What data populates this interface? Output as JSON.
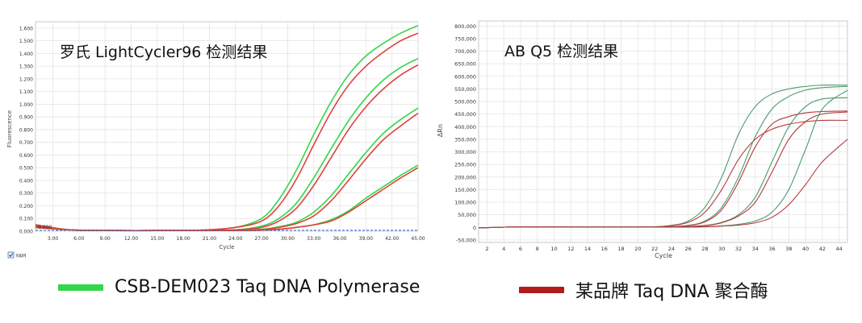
{
  "colors": {
    "green": "#33d64a",
    "red": "#e0413e",
    "green_dark": "#4b9a6d",
    "red_dark": "#b33a3a"
  },
  "legend": {
    "green_label": "CSB-DEM023 Taq DNA Polymerase",
    "red_label": "某品牌 Taq DNA 聚合酶"
  },
  "chart_data": [
    {
      "type": "line",
      "title": "罗氏 LightCycler96 检测结果",
      "xlabel": "Cycle",
      "ylabel": "Fluorescence",
      "xlim": [
        1,
        45
      ],
      "ylim": [
        0,
        1.65
      ],
      "x_ticks": [
        "3.00",
        "6.00",
        "9.00",
        "12.00",
        "15.00",
        "18.00",
        "21.00",
        "24.00",
        "27.00",
        "30.00",
        "33.00",
        "36.00",
        "39.00",
        "42.00",
        "45.00"
      ],
      "y_ticks": [
        "0.000",
        "0.100",
        "0.200",
        "0.300",
        "0.400",
        "0.500",
        "0.600",
        "0.700",
        "0.800",
        "0.900",
        "1.000",
        "1.100",
        "1.200",
        "1.300",
        "1.400",
        "1.500",
        "1.600"
      ],
      "y_ticks_values": [
        0,
        0.1,
        0.2,
        0.3,
        0.4,
        0.5,
        0.6,
        0.7,
        0.8,
        0.9,
        1.0,
        1.1,
        1.2,
        1.3,
        1.4,
        1.5,
        1.6
      ],
      "x_ticks_values": [
        3,
        6,
        9,
        12,
        15,
        18,
        21,
        24,
        27,
        30,
        33,
        36,
        39,
        42,
        45
      ],
      "baseline_label": "0.000",
      "channel_label": "FAM",
      "grid": true,
      "series": [
        {
          "group": "green",
          "x": [
            1,
            5,
            10,
            15,
            20,
            24,
            27,
            29,
            31,
            33,
            35,
            37,
            39,
            41,
            43,
            45
          ],
          "y": [
            0.05,
            0.01,
            0.005,
            0.005,
            0.008,
            0.03,
            0.1,
            0.25,
            0.48,
            0.76,
            1.02,
            1.23,
            1.38,
            1.48,
            1.56,
            1.62
          ]
        },
        {
          "group": "red",
          "x": [
            1,
            5,
            10,
            15,
            20,
            24,
            27,
            29,
            31,
            33,
            35,
            37,
            39,
            41,
            43,
            45
          ],
          "y": [
            0.05,
            0.01,
            0.005,
            0.005,
            0.008,
            0.03,
            0.08,
            0.2,
            0.41,
            0.68,
            0.94,
            1.15,
            1.3,
            1.41,
            1.5,
            1.56
          ]
        },
        {
          "group": "green",
          "x": [
            1,
            5,
            10,
            15,
            20,
            24,
            27,
            29,
            31,
            33,
            35,
            37,
            39,
            41,
            43,
            45
          ],
          "y": [
            0.04,
            0.01,
            0.005,
            0.005,
            0.005,
            0.01,
            0.04,
            0.1,
            0.22,
            0.42,
            0.65,
            0.87,
            1.05,
            1.19,
            1.29,
            1.36
          ]
        },
        {
          "group": "red",
          "x": [
            1,
            5,
            10,
            15,
            20,
            24,
            27,
            29,
            31,
            33,
            35,
            37,
            39,
            41,
            43,
            45
          ],
          "y": [
            0.04,
            0.01,
            0.005,
            0.005,
            0.005,
            0.01,
            0.03,
            0.08,
            0.18,
            0.36,
            0.58,
            0.8,
            0.98,
            1.12,
            1.23,
            1.31
          ]
        },
        {
          "group": "green",
          "x": [
            1,
            5,
            10,
            15,
            20,
            24,
            27,
            29,
            31,
            33,
            35,
            37,
            39,
            41,
            43,
            45
          ],
          "y": [
            0.03,
            0.01,
            0.005,
            0.005,
            0.005,
            0.008,
            0.015,
            0.035,
            0.07,
            0.15,
            0.28,
            0.45,
            0.62,
            0.77,
            0.88,
            0.97
          ]
        },
        {
          "group": "red",
          "x": [
            1,
            5,
            10,
            15,
            20,
            24,
            27,
            29,
            31,
            33,
            35,
            37,
            39,
            41,
            43,
            45
          ],
          "y": [
            0.03,
            0.01,
            0.005,
            0.005,
            0.005,
            0.008,
            0.012,
            0.03,
            0.06,
            0.12,
            0.24,
            0.4,
            0.57,
            0.72,
            0.83,
            0.93
          ]
        },
        {
          "group": "green",
          "x": [
            1,
            5,
            10,
            15,
            20,
            24,
            27,
            29,
            31,
            33,
            35,
            37,
            39,
            41,
            43,
            45
          ],
          "y": [
            0.03,
            0.01,
            0.005,
            0.005,
            0.005,
            0.005,
            0.008,
            0.015,
            0.03,
            0.05,
            0.09,
            0.16,
            0.26,
            0.35,
            0.44,
            0.52
          ]
        },
        {
          "group": "red",
          "x": [
            1,
            5,
            10,
            15,
            20,
            24,
            27,
            29,
            31,
            33,
            35,
            37,
            39,
            41,
            43,
            45
          ],
          "y": [
            0.03,
            0.01,
            0.005,
            0.005,
            0.005,
            0.005,
            0.008,
            0.015,
            0.03,
            0.05,
            0.08,
            0.15,
            0.24,
            0.33,
            0.42,
            0.5
          ]
        }
      ]
    },
    {
      "type": "line",
      "title": "AB Q5 检测结果",
      "xlabel": "Cycle",
      "ylabel": "ΔRn",
      "xlim": [
        1,
        45
      ],
      "ylim": [
        -60000,
        820000
      ],
      "x_ticks": [
        "2",
        "4",
        "6",
        "8",
        "10",
        "12",
        "14",
        "16",
        "18",
        "20",
        "22",
        "24",
        "26",
        "28",
        "30",
        "32",
        "34",
        "36",
        "38",
        "40",
        "42",
        "44"
      ],
      "x_ticks_values": [
        2,
        4,
        6,
        8,
        10,
        12,
        14,
        16,
        18,
        20,
        22,
        24,
        26,
        28,
        30,
        32,
        34,
        36,
        38,
        40,
        42,
        44
      ],
      "y_ticks": [
        "-50,000",
        "0",
        "50,000",
        "100,000",
        "150,000",
        "200,000",
        "250,000",
        "300,000",
        "350,000",
        "400,000",
        "450,000",
        "500,000",
        "550,000",
        "600,000",
        "650,000",
        "700,000",
        "750,000",
        "800,000"
      ],
      "y_ticks_values": [
        -50000,
        0,
        50000,
        100000,
        150000,
        200000,
        250000,
        300000,
        350000,
        400000,
        450000,
        500000,
        550000,
        600000,
        650000,
        700000,
        750000,
        800000
      ],
      "grid": true,
      "series": [
        {
          "group": "green",
          "x": [
            1,
            6,
            12,
            18,
            22,
            24,
            26,
            28,
            30,
            32,
            34,
            36,
            38,
            40,
            42,
            45
          ],
          "y": [
            -2000,
            2000,
            1000,
            1000,
            2000,
            8000,
            25000,
            80000,
            200000,
            370000,
            480000,
            530000,
            550000,
            560000,
            565000,
            565000
          ]
        },
        {
          "group": "red",
          "x": [
            1,
            6,
            12,
            18,
            22,
            24,
            26,
            28,
            30,
            32,
            34,
            36,
            38,
            40,
            42,
            45
          ],
          "y": [
            -2000,
            2000,
            1000,
            1000,
            2000,
            7000,
            20000,
            60000,
            150000,
            270000,
            350000,
            390000,
            410000,
            420000,
            425000,
            425000
          ]
        },
        {
          "group": "green",
          "x": [
            1,
            6,
            12,
            18,
            22,
            24,
            26,
            28,
            30,
            32,
            34,
            36,
            38,
            40,
            42,
            45
          ],
          "y": [
            -2000,
            2000,
            1000,
            1000,
            1000,
            3000,
            8000,
            25000,
            80000,
            200000,
            360000,
            470000,
            520000,
            545000,
            555000,
            560000
          ]
        },
        {
          "group": "red",
          "x": [
            1,
            6,
            12,
            18,
            22,
            24,
            26,
            28,
            30,
            32,
            34,
            36,
            38,
            40,
            42,
            45
          ],
          "y": [
            -2000,
            2000,
            1000,
            1000,
            1000,
            3000,
            7000,
            22000,
            70000,
            180000,
            320000,
            410000,
            440000,
            455000,
            460000,
            462000
          ]
        },
        {
          "group": "green",
          "x": [
            1,
            6,
            12,
            18,
            22,
            24,
            26,
            28,
            30,
            32,
            34,
            36,
            38,
            40,
            42,
            45
          ],
          "y": [
            -2000,
            2000,
            1000,
            1000,
            1000,
            1000,
            3000,
            8000,
            20000,
            50000,
            120000,
            260000,
            400000,
            480000,
            510000,
            515000
          ]
        },
        {
          "group": "red",
          "x": [
            1,
            6,
            12,
            18,
            22,
            24,
            26,
            28,
            30,
            32,
            34,
            36,
            38,
            40,
            42,
            45
          ],
          "y": [
            -2000,
            2000,
            1000,
            1000,
            1000,
            1000,
            3000,
            7000,
            18000,
            45000,
            100000,
            220000,
            350000,
            420000,
            450000,
            458000
          ]
        },
        {
          "group": "green",
          "x": [
            1,
            6,
            12,
            18,
            22,
            24,
            26,
            28,
            30,
            32,
            34,
            36,
            38,
            40,
            42,
            45
          ],
          "y": [
            -2000,
            2000,
            1000,
            1000,
            1000,
            1000,
            1000,
            3000,
            6000,
            12000,
            25000,
            60000,
            150000,
            310000,
            470000,
            545000
          ]
        },
        {
          "group": "red",
          "x": [
            1,
            6,
            12,
            18,
            22,
            24,
            26,
            28,
            30,
            32,
            34,
            36,
            38,
            40,
            42,
            45
          ],
          "y": [
            -2000,
            2000,
            1000,
            1000,
            1000,
            1000,
            1000,
            2000,
            5000,
            9000,
            18000,
            40000,
            90000,
            170000,
            260000,
            350000
          ]
        }
      ]
    }
  ]
}
